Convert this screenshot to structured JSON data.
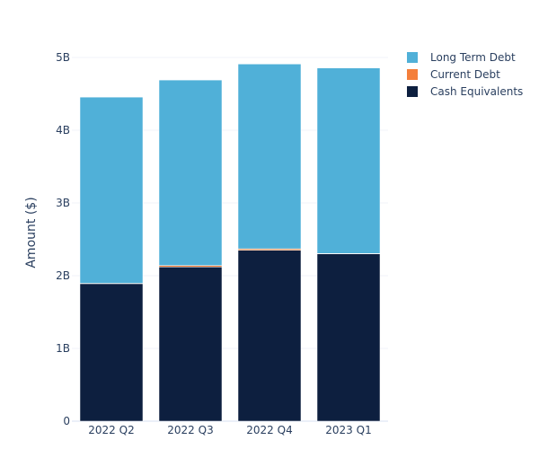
{
  "chart_data": {
    "type": "bar",
    "stacked": true,
    "title": "",
    "xlabel": "",
    "ylabel": "Amount ($)",
    "ylim": [
      0,
      5.2
    ],
    "yunit": "B",
    "yticks": [
      0,
      1,
      2,
      3,
      4,
      5
    ],
    "ytick_labels": [
      "0",
      "1B",
      "2B",
      "3B",
      "4B",
      "5B"
    ],
    "grid": true,
    "legend_position": "top-right",
    "categories": [
      "2022 Q2",
      "2022 Q3",
      "2022 Q4",
      "2023 Q1"
    ],
    "series": [
      {
        "name": "Cash Equivalents",
        "color": "#0d1f3f",
        "values": [
          1.89,
          2.12,
          2.35,
          2.3
        ]
      },
      {
        "name": "Current Debt",
        "color": "#f47f3b",
        "values": [
          0.005,
          0.02,
          0.02,
          0.005
        ]
      },
      {
        "name": "Long Term Debt",
        "color": "#50b0d8",
        "values": [
          2.56,
          2.55,
          2.54,
          2.55
        ]
      }
    ],
    "legend_order": [
      "Long Term Debt",
      "Current Debt",
      "Cash Equivalents"
    ]
  }
}
